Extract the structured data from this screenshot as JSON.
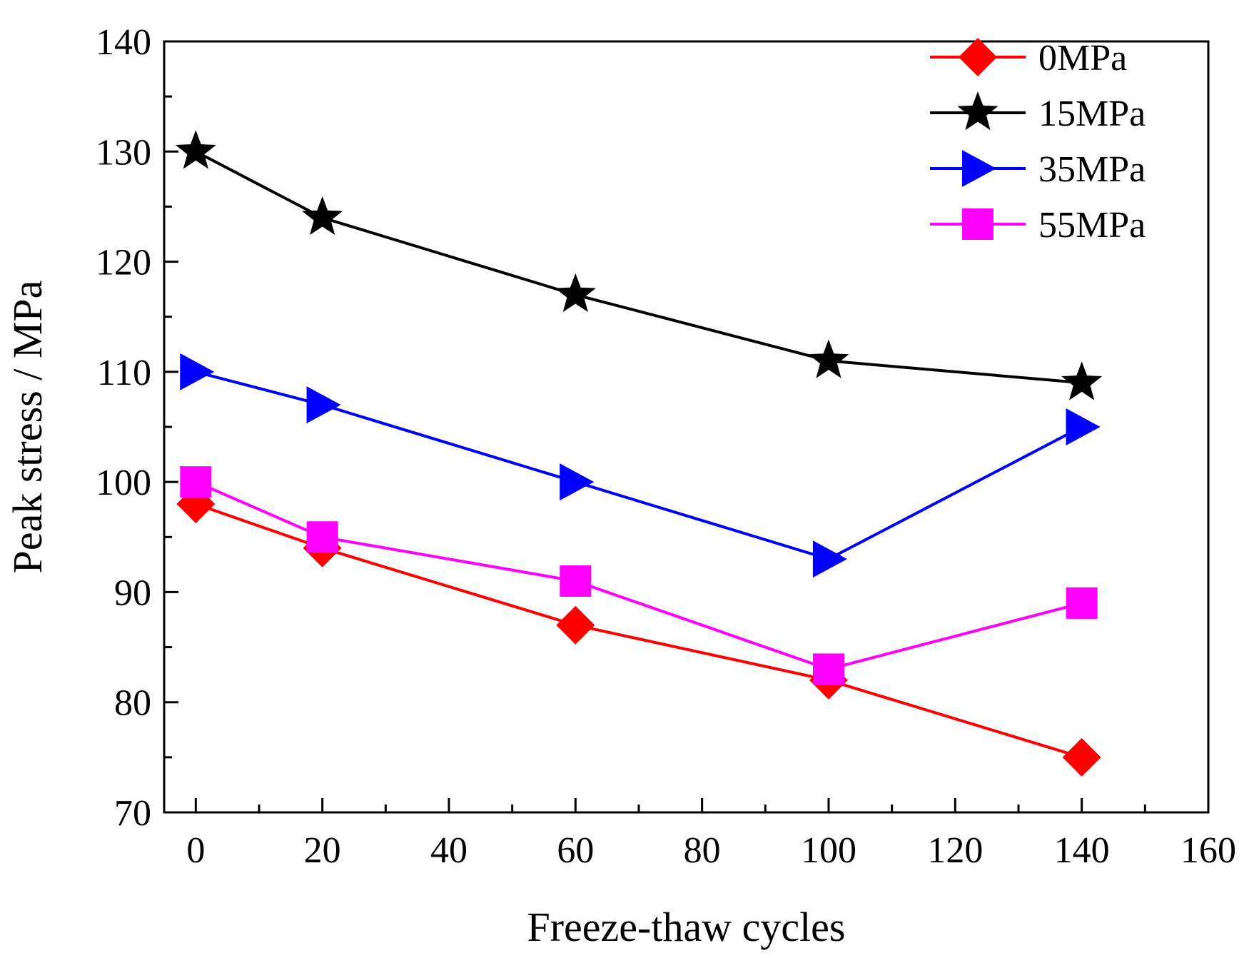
{
  "chart_data": {
    "type": "line",
    "title": "",
    "xlabel": "Freeze-thaw cycles",
    "ylabel": "Peak stress / MPa",
    "xlim": [
      -5,
      160
    ],
    "ylim": [
      70,
      140
    ],
    "xticks": [
      0,
      20,
      40,
      60,
      80,
      100,
      120,
      140,
      160
    ],
    "yticks": [
      70,
      80,
      90,
      100,
      110,
      120,
      130,
      140
    ],
    "grid": false,
    "legend_position": "top-right",
    "x": [
      0,
      20,
      60,
      100,
      140
    ],
    "series": [
      {
        "name": "0MPa",
        "marker": "diamond",
        "color": "#ff0000",
        "values": [
          98,
          94,
          87,
          82,
          75
        ]
      },
      {
        "name": "15MPa",
        "marker": "star",
        "color": "#000000",
        "values": [
          130,
          124,
          117,
          111,
          109
        ]
      },
      {
        "name": "35MPa",
        "marker": "triangle-right",
        "color": "#0000ff",
        "values": [
          110,
          107,
          100,
          93,
          105
        ]
      },
      {
        "name": "55MPa",
        "marker": "square",
        "color": "#ff00ff",
        "values": [
          100,
          95,
          91,
          83,
          89
        ]
      }
    ]
  }
}
